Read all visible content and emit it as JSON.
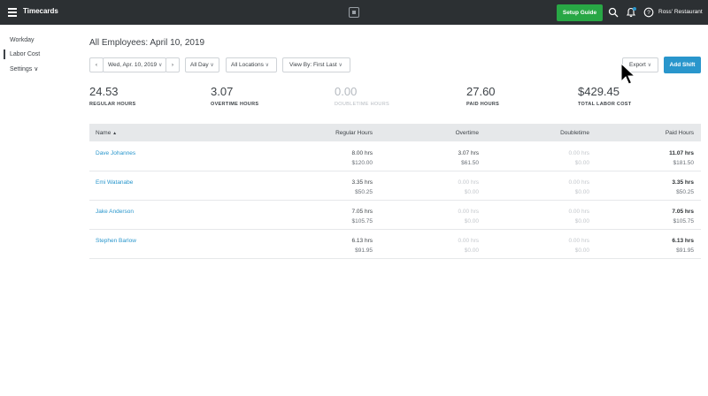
{
  "topbar": {
    "title": "Timecards",
    "setup_label": "Setup Guide",
    "account_name": "Ross' Restaurant",
    "icons": [
      "menu-icon",
      "square-logo-icon",
      "search-icon",
      "bell-icon",
      "help-icon"
    ]
  },
  "sidebar": {
    "items": [
      {
        "label": "Workday"
      },
      {
        "label": "Labor Cost",
        "active": true
      },
      {
        "label": "Settings ∨"
      }
    ]
  },
  "page": {
    "title": "All Employees: April 10, 2019"
  },
  "filters": {
    "prev": "‹",
    "date": "Wed, Apr. 10, 2019",
    "next": "›",
    "time": "All Day",
    "locations": "All Locations",
    "view_by": "View By: First Last",
    "chevron": "∨"
  },
  "actions": {
    "export": "Export",
    "add_shift": "Add Shift"
  },
  "stats": [
    {
      "value": "24.53",
      "label": "REGULAR HOURS"
    },
    {
      "value": "3.07",
      "label": "OVERTIME HOURS"
    },
    {
      "value": "0.00",
      "label": "DOUBLETIME HOURS"
    },
    {
      "value": "27.60",
      "label": "PAID HOURS"
    },
    {
      "value": "$429.45",
      "label": "TOTAL LABOR COST"
    }
  ],
  "table": {
    "headers": {
      "name": "Name",
      "sort_arrow": "▲",
      "regular": "Regular Hours",
      "overtime": "Overtime",
      "doubletime": "Doubletime",
      "paid": "Paid Hours"
    },
    "rows": [
      {
        "name": "Dave Johannes",
        "reg_hrs": "8.00 hrs",
        "reg_pay": "$120.00",
        "ot_hrs": "3.07 hrs",
        "ot_pay": "$61.50",
        "dt_hrs": "0.00 hrs",
        "dt_pay": "$0.00",
        "paid_hrs": "11.07 hrs",
        "paid_pay": "$181.50"
      },
      {
        "name": "Emi Watanabe",
        "reg_hrs": "3.35 hrs",
        "reg_pay": "$50.25",
        "ot_hrs": "0.00 hrs",
        "ot_pay": "$0.00",
        "dt_hrs": "0.00 hrs",
        "dt_pay": "$0.00",
        "paid_hrs": "3.35 hrs",
        "paid_pay": "$50.25"
      },
      {
        "name": "Jake Anderson",
        "reg_hrs": "7.05 hrs",
        "reg_pay": "$105.75",
        "ot_hrs": "0.00 hrs",
        "ot_pay": "$0.00",
        "dt_hrs": "0.00 hrs",
        "dt_pay": "$0.00",
        "paid_hrs": "7.05 hrs",
        "paid_pay": "$105.75"
      },
      {
        "name": "Stephen Barlow",
        "reg_hrs": "6.13 hrs",
        "reg_pay": "$91.95",
        "ot_hrs": "0.00 hrs",
        "ot_pay": "$0.00",
        "dt_hrs": "0.00 hrs",
        "dt_pay": "$0.00",
        "paid_hrs": "6.13 hrs",
        "paid_pay": "$91.95"
      }
    ]
  },
  "colors": {
    "topbar": "#2c3033",
    "setup_green": "#28a745",
    "accent_blue": "#2996cc",
    "header_gray": "#e6e8ea"
  }
}
